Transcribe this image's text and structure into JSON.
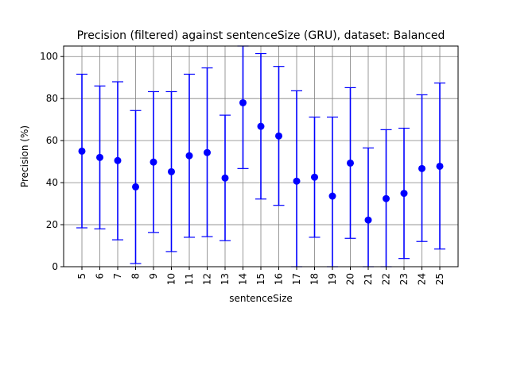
{
  "chart_data": {
    "type": "scatter",
    "title": "Precision (filtered) against sentenceSize (GRU), dataset: Balanced",
    "xlabel": "sentenceSize",
    "ylabel": "Precision (%)",
    "categories": [
      "5",
      "6",
      "7",
      "8",
      "9",
      "10",
      "11",
      "12",
      "13",
      "14",
      "15",
      "16",
      "17",
      "18",
      "19",
      "20",
      "21",
      "22",
      "23",
      "24",
      "25"
    ],
    "values": [
      55.0,
      52.0,
      50.5,
      38.0,
      49.8,
      45.2,
      52.8,
      54.3,
      42.2,
      78.0,
      66.8,
      62.2,
      40.7,
      42.6,
      33.6,
      49.3,
      22.2,
      32.4,
      34.9,
      46.7,
      47.8
    ],
    "error_low": [
      18.5,
      18.0,
      12.8,
      1.5,
      16.3,
      7.2,
      14.0,
      14.3,
      12.4,
      46.7,
      32.2,
      29.2,
      0.0,
      14.0,
      0.0,
      13.5,
      0.0,
      0.0,
      3.9,
      12.0,
      8.4
    ],
    "error_high": [
      91.6,
      86.0,
      88.0,
      74.3,
      83.3,
      83.3,
      91.6,
      94.6,
      72.1,
      105.0,
      101.4,
      95.3,
      83.7,
      71.2,
      71.2,
      85.2,
      56.5,
      65.2,
      65.9,
      81.8,
      87.4
    ],
    "ylim": [
      0,
      105
    ],
    "yticks": [
      0,
      20,
      40,
      60,
      80,
      100
    ],
    "grid": true,
    "color": "#0000ff"
  }
}
